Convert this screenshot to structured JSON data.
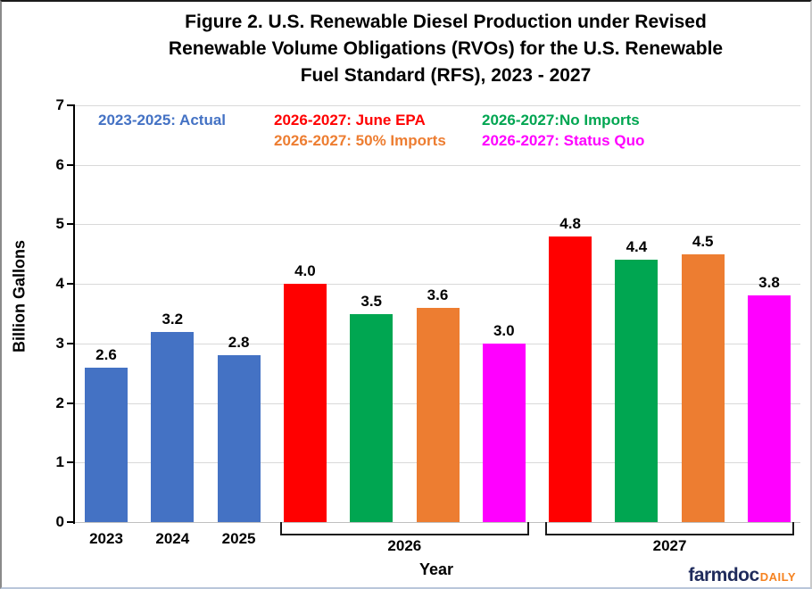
{
  "figure": {
    "title_lines": [
      "Figure 2. U.S. Renewable Diesel Production under Revised",
      "Renewable Volume Obligations (RVOs) for the U.S. Renewable",
      "Fuel Standard (RFS), 2023 - 2027"
    ]
  },
  "legend": {
    "items": [
      {
        "label": "2023-2025: Actual",
        "color": "#4472C4"
      },
      {
        "label": "2026-2027: June EPA",
        "color": "#FF0000"
      },
      {
        "label": "2026-2027:No Imports",
        "color": "#00A651"
      },
      {
        "label": "2026-2027: 50% Imports",
        "color": "#ED7D31"
      },
      {
        "label": "2026-2027: Status Quo",
        "color": "#FF00FF"
      }
    ]
  },
  "chart_data": {
    "type": "bar",
    "title": "Figure 2. U.S. Renewable Diesel Production under Revised Renewable Volume Obligations (RVOs) for the U.S. Renewable Fuel Standard (RFS), 2023 - 2027",
    "xlabel": "Year",
    "ylabel": "Billion Gallons",
    "ylim": [
      0,
      7
    ],
    "yticks": [
      0,
      1,
      2,
      3,
      4,
      5,
      6,
      7
    ],
    "grid": true,
    "legend_position": "top-inside",
    "groups": [
      {
        "category": "2023",
        "bracket": false,
        "bars": [
          {
            "series": "Actual",
            "value": 2.6,
            "color": "#4472C4"
          }
        ]
      },
      {
        "category": "2024",
        "bracket": false,
        "bars": [
          {
            "series": "Actual",
            "value": 3.2,
            "color": "#4472C4"
          }
        ]
      },
      {
        "category": "2025",
        "bracket": false,
        "bars": [
          {
            "series": "Actual",
            "value": 2.8,
            "color": "#4472C4"
          }
        ]
      },
      {
        "category": "2026",
        "bracket": true,
        "bars": [
          {
            "series": "June EPA",
            "value": 4.0,
            "color": "#FF0000"
          },
          {
            "series": "No Imports",
            "value": 3.5,
            "color": "#00A651"
          },
          {
            "series": "50% Imports",
            "value": 3.6,
            "color": "#ED7D31"
          },
          {
            "series": "Status Quo",
            "value": 3.0,
            "color": "#FF00FF"
          }
        ]
      },
      {
        "category": "2027",
        "bracket": true,
        "bars": [
          {
            "series": "June EPA",
            "value": 4.8,
            "color": "#FF0000"
          },
          {
            "series": "No Imports",
            "value": 4.4,
            "color": "#00A651"
          },
          {
            "series": "50% Imports",
            "value": 4.5,
            "color": "#ED7D31"
          },
          {
            "series": "Status Quo",
            "value": 3.8,
            "color": "#FF00FF"
          }
        ]
      }
    ]
  },
  "branding": {
    "name": "farmdoc",
    "suffix": "DAILY",
    "name_color": "#1F2B5C",
    "suffix_color": "#F58220"
  }
}
